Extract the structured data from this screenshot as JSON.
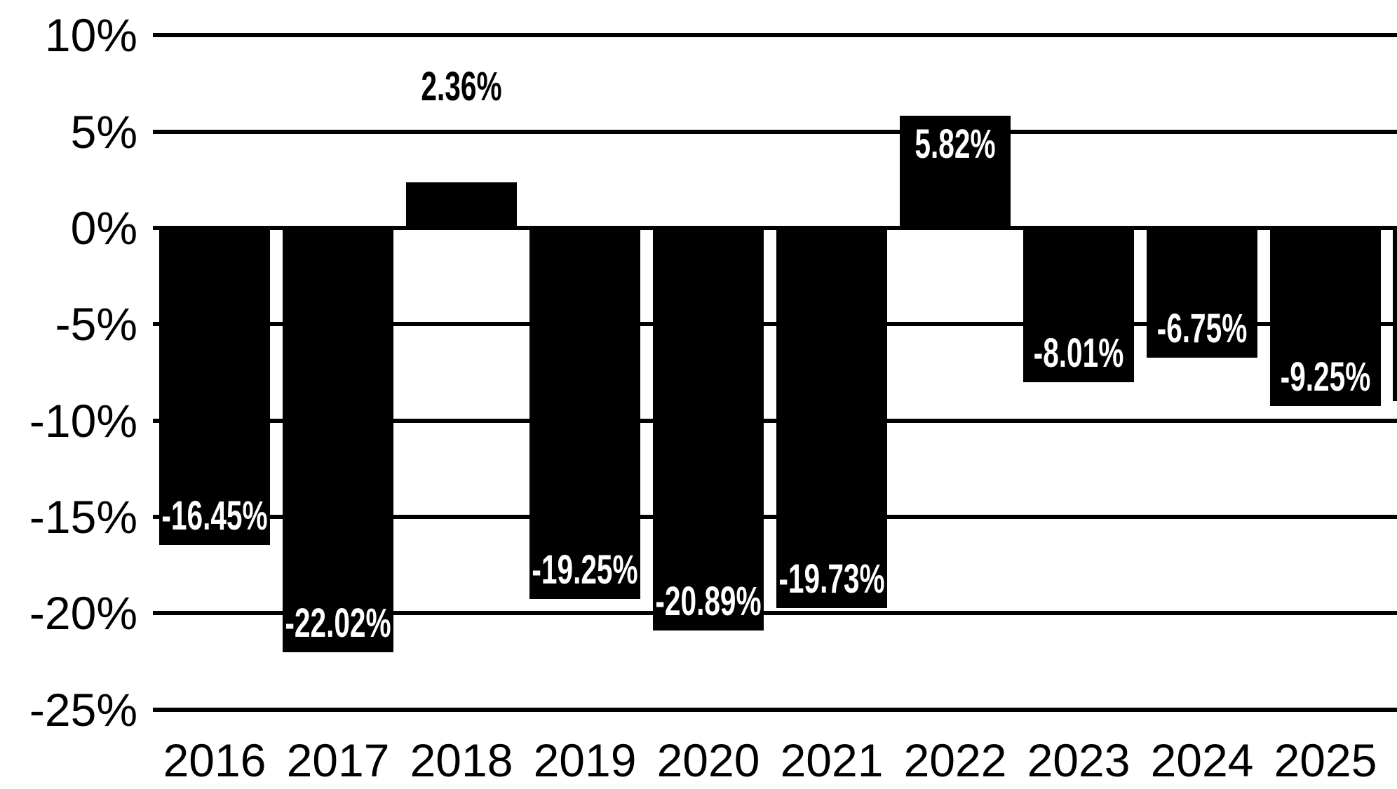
{
  "chart_data": {
    "type": "bar",
    "title": "",
    "xlabel": "",
    "ylabel": "",
    "categories": [
      "2016",
      "2017",
      "2018",
      "2019",
      "2020",
      "2021",
      "2022",
      "2023",
      "2024",
      "2025"
    ],
    "values": [
      -16.45,
      -22.02,
      2.36,
      -19.25,
      -20.89,
      -19.73,
      5.82,
      -8.01,
      -6.75,
      -9.25
    ],
    "bar_labels": [
      "-16.45%",
      "-22.02%",
      "2.36%",
      "-19.25%",
      "-20.89%",
      "-19.73%",
      "5.82%",
      "-8.01%",
      "-6.75%",
      "-9.25%"
    ],
    "bar_label_placement": [
      "inside-bottom",
      "inside-bottom",
      "above",
      "inside-bottom",
      "inside-bottom",
      "inside-bottom",
      "inside-top",
      "inside-bottom",
      "inside-bottom",
      "inside-bottom"
    ],
    "y_axis": {
      "tick_labels": [
        "10%",
        "5%",
        "0%",
        "-5%",
        "-10%",
        "-15%",
        "-20%",
        "-25%"
      ],
      "tick_values": [
        10,
        5,
        0,
        -5,
        -10,
        -15,
        -20,
        -25
      ],
      "range": [
        -25,
        10
      ]
    },
    "grid": true,
    "legend_position": "none",
    "colors": {
      "bar": "#000000",
      "gridline": "#000000",
      "background": "#ffffff",
      "label_inside_bar": "#ffffff",
      "label_outside_bar": "#000000",
      "axis_text": "#000000"
    },
    "partial_bar_right_edge": {
      "visible": true,
      "label": "",
      "approx_value_pct": -9
    }
  }
}
